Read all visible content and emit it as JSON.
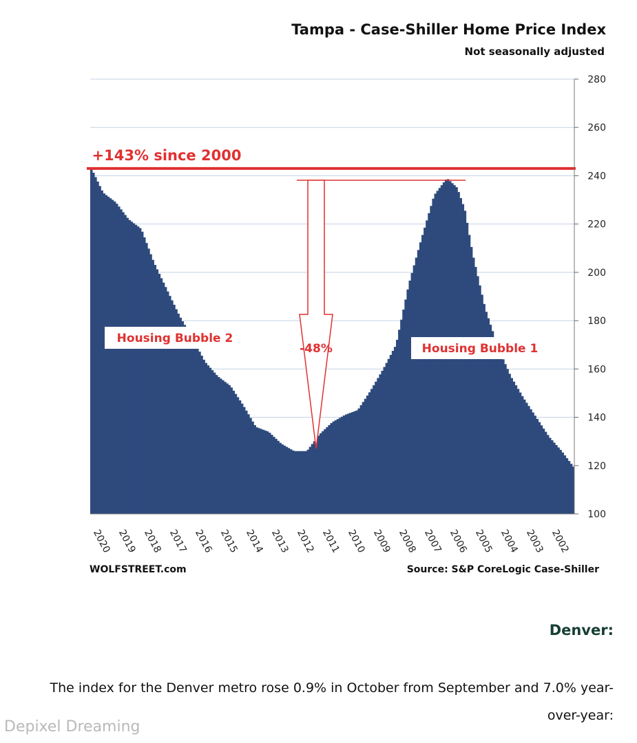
{
  "chart_data": {
    "type": "bar",
    "title": "Tampa - Case-Shiller Home Price Index",
    "subtitle": "Not seasonally adjusted",
    "ylim": [
      100,
      280
    ],
    "yticks": [
      100,
      120,
      140,
      160,
      180,
      200,
      220,
      240,
      260,
      280
    ],
    "x_tick_labels": [
      "2002",
      "2003",
      "2004",
      "2005",
      "2006",
      "2007",
      "2008",
      "2009",
      "2010",
      "2011",
      "2012",
      "2013",
      "2014",
      "2015",
      "2016",
      "2017",
      "2018",
      "2019",
      "2020"
    ],
    "x_range": [
      2002,
      2021
    ],
    "grid": true,
    "bar_color": "#2e4a7d",
    "annotation_color": "#e03131",
    "series": [
      {
        "x": [
          2002.0,
          2002.5,
          2003.0,
          2003.5,
          2004.0,
          2004.5,
          2005.0,
          2005.5,
          2006.0,
          2006.3,
          2006.6,
          2007.0,
          2007.5,
          2008.0,
          2008.5,
          2009.0,
          2009.5,
          2010.0,
          2010.5,
          2011.0,
          2011.5,
          2012.0,
          2012.5,
          2013.0,
          2013.5,
          2014.0,
          2014.5,
          2015.0,
          2015.5,
          2016.0,
          2016.5,
          2017.0,
          2017.5,
          2018.0,
          2018.5,
          2019.0,
          2019.5,
          2020.0,
          2020.5,
          2021.0
        ],
        "values": [
          119,
          126,
          132,
          140,
          148,
          157,
          169,
          185,
          208,
          226,
          235,
          239,
          232,
          214,
          195,
          170,
          160,
          151,
          143,
          141,
          138,
          133,
          126,
          126,
          129,
          134,
          136,
          145,
          153,
          157,
          163,
          173,
          182,
          193,
          204,
          218,
          222,
          229,
          233,
          244
        ]
      }
    ],
    "annotations": {
      "growth_label": "+143% since 2000",
      "drop_label": "-48%",
      "bubble1_label": "Housing Bubble 1",
      "bubble2_label": "Housing Bubble 2",
      "line_value": 243
    },
    "source": "Source: S&P CoreLogic Case-Shiller",
    "brand": "WOLFSTREET.com"
  },
  "article": {
    "heading": "Denver:",
    "paragraph": "The index for the Denver metro rose 0.9% in October from September and 7.0% year-over-year:"
  },
  "watermark": "Depixel Dreaming"
}
